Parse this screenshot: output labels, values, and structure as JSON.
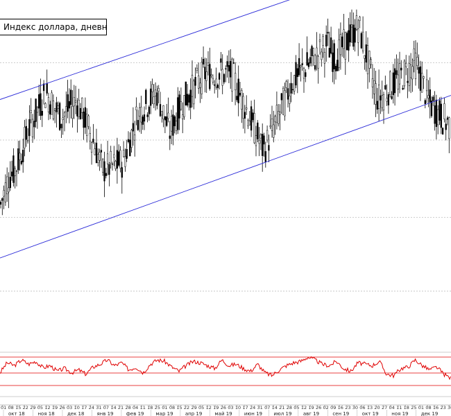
{
  "chart_data": {
    "type": "candlestick",
    "title": "Индекс доллара, дневной график",
    "price_range": [
      90.5,
      100.0
    ],
    "grid": false,
    "horizontal_levels": [
      98.3,
      96.2,
      94.1,
      92.1
    ],
    "price_series_approx": [
      {
        "date": "2018-09-26",
        "close": 94.4
      },
      {
        "date": "2018-10-05",
        "close": 95.2
      },
      {
        "date": "2018-10-12",
        "close": 95.4
      },
      {
        "date": "2018-10-26",
        "close": 96.5
      },
      {
        "date": "2018-11-12",
        "close": 97.5
      },
      {
        "date": "2018-11-28",
        "close": 96.8
      },
      {
        "date": "2018-12-14",
        "close": 97.3
      },
      {
        "date": "2018-12-31",
        "close": 96.2
      },
      {
        "date": "2019-01-10",
        "close": 95.4
      },
      {
        "date": "2019-01-31",
        "close": 95.6
      },
      {
        "date": "2019-02-15",
        "close": 96.9
      },
      {
        "date": "2019-03-07",
        "close": 97.5
      },
      {
        "date": "2019-03-20",
        "close": 96.4
      },
      {
        "date": "2019-04-02",
        "close": 97.2
      },
      {
        "date": "2019-04-25",
        "close": 98.0
      },
      {
        "date": "2019-05-23",
        "close": 98.0
      },
      {
        "date": "2019-06-25",
        "close": 95.9
      },
      {
        "date": "2019-07-25",
        "close": 97.8
      },
      {
        "date": "2019-08-30",
        "close": 98.8
      },
      {
        "date": "2019-09-06",
        "close": 98.4
      },
      {
        "date": "2019-10-01",
        "close": 99.3
      },
      {
        "date": "2019-10-21",
        "close": 97.3
      },
      {
        "date": "2019-11-29",
        "close": 98.3
      },
      {
        "date": "2019-12-13",
        "close": 97.2
      },
      {
        "date": "2020-01-03",
        "close": 96.6
      }
    ],
    "channel_lines": [
      {
        "name": "upper",
        "points": [
          [
            "2018-09-26",
            97.3
          ],
          [
            "2020-01-03",
            101.5
          ]
        ]
      },
      {
        "name": "lower",
        "points": [
          [
            "2018-09-26",
            93.0
          ],
          [
            "2020-01-03",
            97.4
          ]
        ]
      }
    ],
    "oscillator": {
      "type": "line",
      "levels": [
        70,
        50,
        30
      ],
      "values_approx": [
        48,
        62,
        58,
        66,
        60,
        64,
        55,
        58,
        50,
        54,
        48,
        52,
        46,
        56,
        60,
        66,
        58,
        62,
        52,
        56,
        48,
        60,
        66,
        64,
        56,
        50,
        58,
        64,
        62,
        58,
        54,
        66,
        58,
        60,
        54,
        50,
        60,
        48,
        44,
        52,
        58,
        62,
        64,
        70,
        66,
        60,
        58,
        64,
        54,
        50,
        62,
        60,
        58,
        64,
        46,
        44,
        54,
        56,
        66,
        58,
        52,
        56,
        46,
        40
      ]
    },
    "x_axis": {
      "day_ticks": [
        "01",
        "08",
        "15",
        "22",
        "29",
        "05",
        "12",
        "19",
        "26",
        "03",
        "10",
        "17",
        "24",
        "31",
        "07",
        "14",
        "21",
        "28",
        "04",
        "11",
        "18",
        "25",
        "01",
        "08",
        "15",
        "22",
        "29",
        "05",
        "12",
        "19",
        "26",
        "03",
        "10",
        "17",
        "24",
        "31",
        "07",
        "14",
        "21",
        "28",
        "05",
        "12",
        "19",
        "26",
        "02",
        "09",
        "16",
        "23",
        "30",
        "06",
        "13",
        "20",
        "27",
        "04",
        "11",
        "18",
        "25",
        "01",
        "08",
        "16",
        "23",
        "30"
      ],
      "months": [
        "окт 18",
        "ноя 18",
        "дек 18",
        "янв 19",
        "фев 19",
        "мар 19",
        "апр 19",
        "май 19",
        "июн 19",
        "июл 19",
        "авг 19",
        "сен 19",
        "окт 19",
        "ноя 19",
        "дек 19"
      ]
    }
  },
  "colors": {
    "candles": "#000000",
    "channel": "#2a2ad8",
    "oscillator": "#e00000",
    "level_line": "#bdbdbd"
  }
}
